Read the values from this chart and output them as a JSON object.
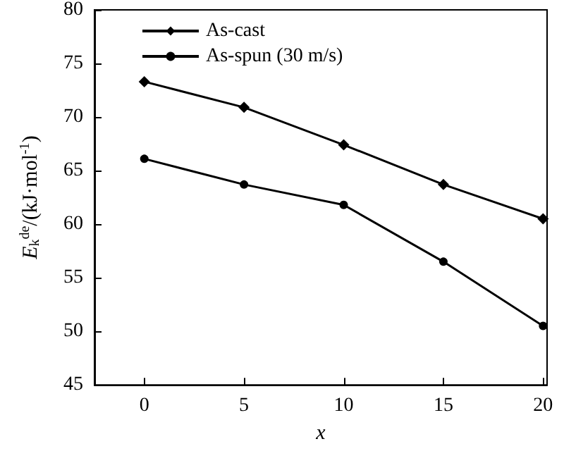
{
  "chart_data": {
    "type": "line",
    "xlabel": "x",
    "ylabel": "E$_{k}$$^{de}$/(kJ·mol$^{-1}$)",
    "x": [
      0,
      5,
      10,
      15,
      20
    ],
    "xlim": [
      -2.5,
      20.2
    ],
    "xticks": [
      0,
      5,
      10,
      15,
      20
    ],
    "ylim": [
      45,
      80
    ],
    "yticks": [
      45,
      50,
      55,
      60,
      65,
      70,
      75,
      80
    ],
    "grid": false,
    "legend": "top left",
    "line_style": "solid",
    "series": [
      {
        "name": "As-cast",
        "color": "#000000",
        "marker": "diamond",
        "values": [
          73.3,
          70.9,
          67.4,
          63.7,
          60.5
        ]
      },
      {
        "name": "As-spun (30 m/s)",
        "color": "#000000",
        "marker": "circle",
        "values": [
          66.1,
          63.7,
          61.8,
          56.5,
          50.5
        ]
      }
    ]
  }
}
